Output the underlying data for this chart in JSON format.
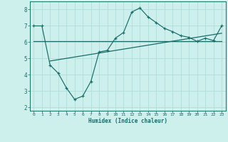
{
  "title": "",
  "xlabel": "Humidex (Indice chaleur)",
  "bg_color": "#cdf0ec",
  "line_color": "#1a6b6b",
  "grid_color": "#b0ddd8",
  "xlim": [
    -0.5,
    23.5
  ],
  "ylim": [
    1.8,
    8.5
  ],
  "xticks": [
    0,
    1,
    2,
    3,
    4,
    5,
    6,
    7,
    8,
    9,
    10,
    11,
    12,
    13,
    14,
    15,
    16,
    17,
    18,
    19,
    20,
    21,
    22,
    23
  ],
  "yticks": [
    2,
    3,
    4,
    5,
    6,
    7,
    8
  ],
  "data_x": [
    0,
    1,
    2,
    3,
    4,
    5,
    6,
    7,
    8,
    9,
    10,
    11,
    12,
    13,
    14,
    15,
    16,
    17,
    18,
    19,
    20,
    21,
    22,
    23
  ],
  "data_y": [
    7.0,
    7.0,
    4.6,
    4.1,
    3.2,
    2.5,
    2.7,
    3.6,
    5.4,
    5.5,
    6.25,
    6.6,
    7.85,
    8.1,
    7.55,
    7.2,
    6.85,
    6.65,
    6.4,
    6.3,
    6.05,
    6.25,
    6.1,
    7.0
  ],
  "trend1_x": [
    0,
    23
  ],
  "trend1_y": [
    6.05,
    6.05
  ],
  "trend2_x": [
    2,
    23
  ],
  "trend2_y": [
    4.85,
    6.55
  ],
  "marker": "+"
}
